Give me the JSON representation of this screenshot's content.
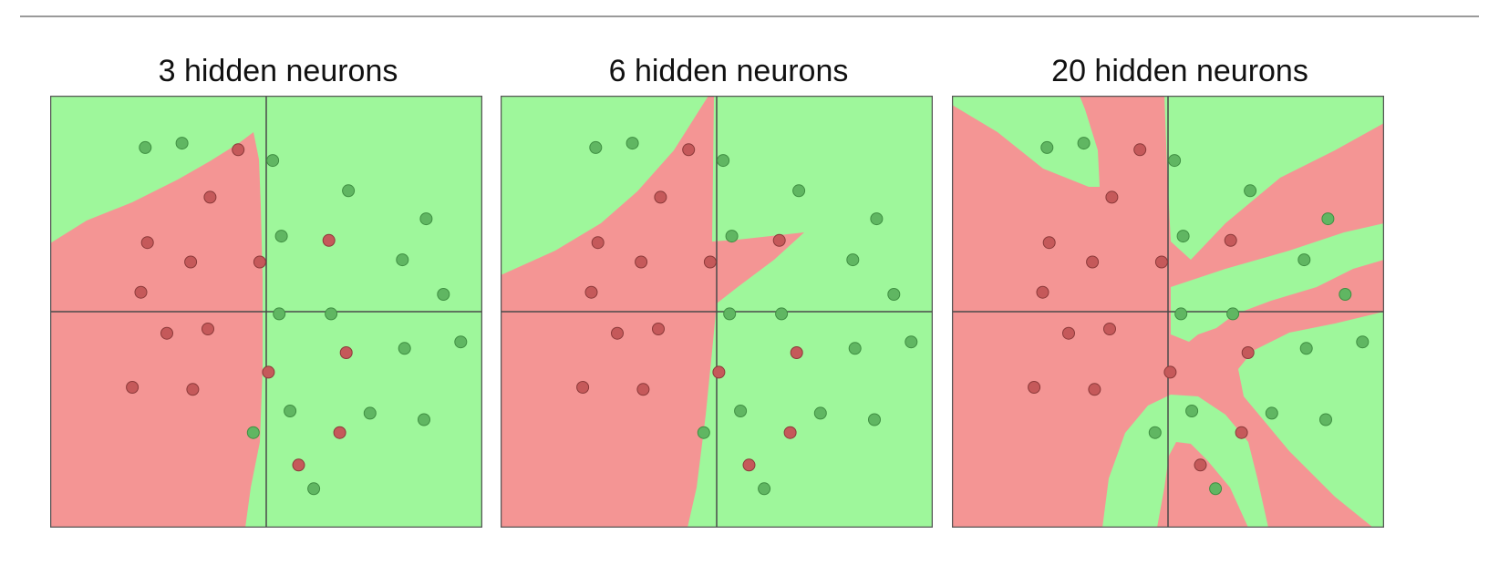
{
  "colors": {
    "region_red": "#f49594",
    "region_green": "#9ef79b",
    "point_red": "#c5595a",
    "point_green": "#60b662",
    "point_stroke_red": "#8c3a3a",
    "point_stroke_green": "#3f8f42",
    "axis": "#4a4a4a",
    "frame": "#555555"
  },
  "chart_data": [
    {
      "type": "scatter",
      "title": "3 hidden neurons",
      "xlim": [
        -5,
        5
      ],
      "ylim": [
        -5,
        5
      ],
      "grid": false,
      "points": [
        {
          "x": -2.8,
          "y": 3.8,
          "class": "green"
        },
        {
          "x": -1.95,
          "y": 3.9,
          "class": "green"
        },
        {
          "x": -0.65,
          "y": 3.75,
          "class": "red"
        },
        {
          "x": 0.15,
          "y": 3.5,
          "class": "green"
        },
        {
          "x": -1.3,
          "y": 2.65,
          "class": "red"
        },
        {
          "x": 1.9,
          "y": 2.8,
          "class": "green"
        },
        {
          "x": 3.7,
          "y": 2.15,
          "class": "green"
        },
        {
          "x": -2.75,
          "y": 1.6,
          "class": "red"
        },
        {
          "x": 0.35,
          "y": 1.75,
          "class": "green"
        },
        {
          "x": 1.45,
          "y": 1.65,
          "class": "red"
        },
        {
          "x": -1.75,
          "y": 1.15,
          "class": "red"
        },
        {
          "x": -0.15,
          "y": 1.15,
          "class": "red"
        },
        {
          "x": 3.15,
          "y": 1.2,
          "class": "green"
        },
        {
          "x": -2.9,
          "y": 0.45,
          "class": "red"
        },
        {
          "x": 4.1,
          "y": 0.4,
          "class": "green"
        },
        {
          "x": 0.3,
          "y": -0.05,
          "class": "green"
        },
        {
          "x": 1.5,
          "y": -0.05,
          "class": "green"
        },
        {
          "x": -2.3,
          "y": -0.5,
          "class": "red"
        },
        {
          "x": -1.35,
          "y": -0.4,
          "class": "red"
        },
        {
          "x": 1.85,
          "y": -0.95,
          "class": "red"
        },
        {
          "x": 3.2,
          "y": -0.85,
          "class": "green"
        },
        {
          "x": 4.5,
          "y": -0.7,
          "class": "green"
        },
        {
          "x": 0.05,
          "y": -1.4,
          "class": "red"
        },
        {
          "x": -3.1,
          "y": -1.75,
          "class": "red"
        },
        {
          "x": -1.7,
          "y": -1.8,
          "class": "red"
        },
        {
          "x": 0.55,
          "y": -2.3,
          "class": "green"
        },
        {
          "x": 2.4,
          "y": -2.35,
          "class": "green"
        },
        {
          "x": 3.65,
          "y": -2.5,
          "class": "green"
        },
        {
          "x": -0.3,
          "y": -2.8,
          "class": "green"
        },
        {
          "x": 1.7,
          "y": -2.8,
          "class": "red"
        },
        {
          "x": 0.75,
          "y": -3.55,
          "class": "red"
        },
        {
          "x": 1.1,
          "y": -4.1,
          "class": "green"
        }
      ]
    },
    {
      "type": "scatter",
      "title": "6 hidden neurons",
      "xlim": [
        -5,
        5
      ],
      "ylim": [
        -5,
        5
      ],
      "grid": false,
      "points": [
        {
          "x": -2.8,
          "y": 3.8,
          "class": "green"
        },
        {
          "x": -1.95,
          "y": 3.9,
          "class": "green"
        },
        {
          "x": -0.65,
          "y": 3.75,
          "class": "red"
        },
        {
          "x": 0.15,
          "y": 3.5,
          "class": "green"
        },
        {
          "x": -1.3,
          "y": 2.65,
          "class": "red"
        },
        {
          "x": 1.9,
          "y": 2.8,
          "class": "green"
        },
        {
          "x": 3.7,
          "y": 2.15,
          "class": "green"
        },
        {
          "x": -2.75,
          "y": 1.6,
          "class": "red"
        },
        {
          "x": 0.35,
          "y": 1.75,
          "class": "green"
        },
        {
          "x": 1.45,
          "y": 1.65,
          "class": "red"
        },
        {
          "x": -1.75,
          "y": 1.15,
          "class": "red"
        },
        {
          "x": -0.15,
          "y": 1.15,
          "class": "red"
        },
        {
          "x": 3.15,
          "y": 1.2,
          "class": "green"
        },
        {
          "x": -2.9,
          "y": 0.45,
          "class": "red"
        },
        {
          "x": 4.1,
          "y": 0.4,
          "class": "green"
        },
        {
          "x": 0.3,
          "y": -0.05,
          "class": "green"
        },
        {
          "x": 1.5,
          "y": -0.05,
          "class": "green"
        },
        {
          "x": -2.3,
          "y": -0.5,
          "class": "red"
        },
        {
          "x": -1.35,
          "y": -0.4,
          "class": "red"
        },
        {
          "x": 1.85,
          "y": -0.95,
          "class": "red"
        },
        {
          "x": 3.2,
          "y": -0.85,
          "class": "green"
        },
        {
          "x": 4.5,
          "y": -0.7,
          "class": "green"
        },
        {
          "x": 0.05,
          "y": -1.4,
          "class": "red"
        },
        {
          "x": -3.1,
          "y": -1.75,
          "class": "red"
        },
        {
          "x": -1.7,
          "y": -1.8,
          "class": "red"
        },
        {
          "x": 0.55,
          "y": -2.3,
          "class": "green"
        },
        {
          "x": 2.4,
          "y": -2.35,
          "class": "green"
        },
        {
          "x": 3.65,
          "y": -2.5,
          "class": "green"
        },
        {
          "x": -0.3,
          "y": -2.8,
          "class": "green"
        },
        {
          "x": 1.7,
          "y": -2.8,
          "class": "red"
        },
        {
          "x": 0.75,
          "y": -3.55,
          "class": "red"
        },
        {
          "x": 1.1,
          "y": -4.1,
          "class": "green"
        }
      ]
    },
    {
      "type": "scatter",
      "title": "20 hidden neurons",
      "xlim": [
        -5,
        5
      ],
      "ylim": [
        -5,
        5
      ],
      "grid": false,
      "points": [
        {
          "x": -2.8,
          "y": 3.8,
          "class": "green"
        },
        {
          "x": -1.95,
          "y": 3.9,
          "class": "green"
        },
        {
          "x": -0.65,
          "y": 3.75,
          "class": "red"
        },
        {
          "x": 0.15,
          "y": 3.5,
          "class": "green"
        },
        {
          "x": -1.3,
          "y": 2.65,
          "class": "red"
        },
        {
          "x": 1.9,
          "y": 2.8,
          "class": "green"
        },
        {
          "x": 3.7,
          "y": 2.15,
          "class": "green"
        },
        {
          "x": -2.75,
          "y": 1.6,
          "class": "red"
        },
        {
          "x": 0.35,
          "y": 1.75,
          "class": "green"
        },
        {
          "x": 1.45,
          "y": 1.65,
          "class": "red"
        },
        {
          "x": -1.75,
          "y": 1.15,
          "class": "red"
        },
        {
          "x": -0.15,
          "y": 1.15,
          "class": "red"
        },
        {
          "x": 3.15,
          "y": 1.2,
          "class": "green"
        },
        {
          "x": -2.9,
          "y": 0.45,
          "class": "red"
        },
        {
          "x": 4.1,
          "y": 0.4,
          "class": "green"
        },
        {
          "x": 0.3,
          "y": -0.05,
          "class": "green"
        },
        {
          "x": 1.5,
          "y": -0.05,
          "class": "green"
        },
        {
          "x": -2.3,
          "y": -0.5,
          "class": "red"
        },
        {
          "x": -1.35,
          "y": -0.4,
          "class": "red"
        },
        {
          "x": 1.85,
          "y": -0.95,
          "class": "red"
        },
        {
          "x": 3.2,
          "y": -0.85,
          "class": "green"
        },
        {
          "x": 4.5,
          "y": -0.7,
          "class": "green"
        },
        {
          "x": 0.05,
          "y": -1.4,
          "class": "red"
        },
        {
          "x": -3.1,
          "y": -1.75,
          "class": "red"
        },
        {
          "x": -1.7,
          "y": -1.8,
          "class": "red"
        },
        {
          "x": 0.55,
          "y": -2.3,
          "class": "green"
        },
        {
          "x": 2.4,
          "y": -2.35,
          "class": "green"
        },
        {
          "x": 3.65,
          "y": -2.5,
          "class": "green"
        },
        {
          "x": -0.3,
          "y": -2.8,
          "class": "green"
        },
        {
          "x": 1.7,
          "y": -2.8,
          "class": "red"
        },
        {
          "x": 0.75,
          "y": -3.55,
          "class": "red"
        },
        {
          "x": 1.1,
          "y": -4.1,
          "class": "green"
        }
      ]
    }
  ]
}
